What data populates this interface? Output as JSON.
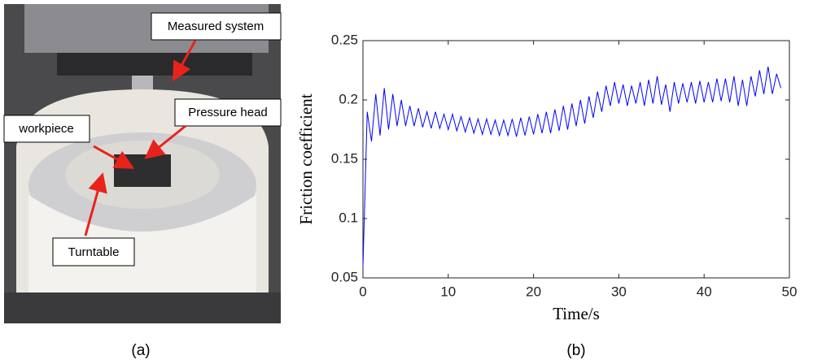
{
  "panel_a": {
    "label": "(a)",
    "annotations": {
      "measured": "Measured system",
      "pressure": "Pressure head",
      "workpiece": "workpiece",
      "turntable": "Turntable"
    }
  },
  "panel_b": {
    "label": "(b)"
  },
  "chart_data": {
    "type": "line",
    "x_label": "Time/s",
    "y_label": "Friction coefficient",
    "xlim": [
      0,
      50
    ],
    "xticks": [
      0,
      10,
      20,
      30,
      40,
      50
    ],
    "ylim": [
      0.05,
      0.25
    ],
    "yticks": [
      0.05,
      0.1,
      0.15,
      0.2,
      0.25
    ],
    "x": [
      0,
      0.5,
      1,
      1.5,
      2,
      2.5,
      3,
      3.5,
      4,
      4.5,
      5,
      5.5,
      6,
      6.5,
      7,
      7.5,
      8,
      8.5,
      9,
      9.5,
      10,
      10.5,
      11,
      11.5,
      12,
      12.5,
      13,
      13.5,
      14,
      14.5,
      15,
      15.5,
      16,
      16.5,
      17,
      17.5,
      18,
      18.5,
      19,
      19.5,
      20,
      20.5,
      21,
      21.5,
      22,
      22.5,
      23,
      23.5,
      24,
      24.5,
      25,
      25.5,
      26,
      26.5,
      27,
      27.5,
      28,
      28.5,
      29,
      29.5,
      30,
      30.5,
      31,
      31.5,
      32,
      32.5,
      33,
      33.5,
      34,
      34.5,
      35,
      35.5,
      36,
      36.5,
      37,
      37.5,
      38,
      38.5,
      39,
      39.5,
      40,
      40.5,
      41,
      41.5,
      42,
      42.5,
      43,
      43.5,
      44,
      44.5,
      45,
      45.5,
      46,
      46.5,
      47,
      47.5,
      48,
      48.5,
      49
    ],
    "series": [
      {
        "color": "#0000ff",
        "values": [
          0.06,
          0.19,
          0.165,
          0.205,
          0.17,
          0.21,
          0.175,
          0.205,
          0.178,
          0.2,
          0.178,
          0.195,
          0.178,
          0.193,
          0.177,
          0.19,
          0.176,
          0.19,
          0.176,
          0.188,
          0.175,
          0.188,
          0.174,
          0.186,
          0.173,
          0.185,
          0.172,
          0.184,
          0.171,
          0.184,
          0.171,
          0.183,
          0.17,
          0.183,
          0.17,
          0.184,
          0.169,
          0.185,
          0.17,
          0.186,
          0.171,
          0.188,
          0.172,
          0.19,
          0.172,
          0.192,
          0.174,
          0.195,
          0.175,
          0.197,
          0.178,
          0.2,
          0.18,
          0.203,
          0.185,
          0.207,
          0.19,
          0.212,
          0.195,
          0.215,
          0.197,
          0.213,
          0.195,
          0.212,
          0.197,
          0.215,
          0.195,
          0.217,
          0.197,
          0.22,
          0.196,
          0.213,
          0.19,
          0.215,
          0.197,
          0.214,
          0.198,
          0.215,
          0.197,
          0.216,
          0.198,
          0.215,
          0.198,
          0.218,
          0.199,
          0.218,
          0.198,
          0.22,
          0.195,
          0.217,
          0.195,
          0.22,
          0.203,
          0.225,
          0.205,
          0.228,
          0.205,
          0.222,
          0.21
        ]
      }
    ]
  }
}
